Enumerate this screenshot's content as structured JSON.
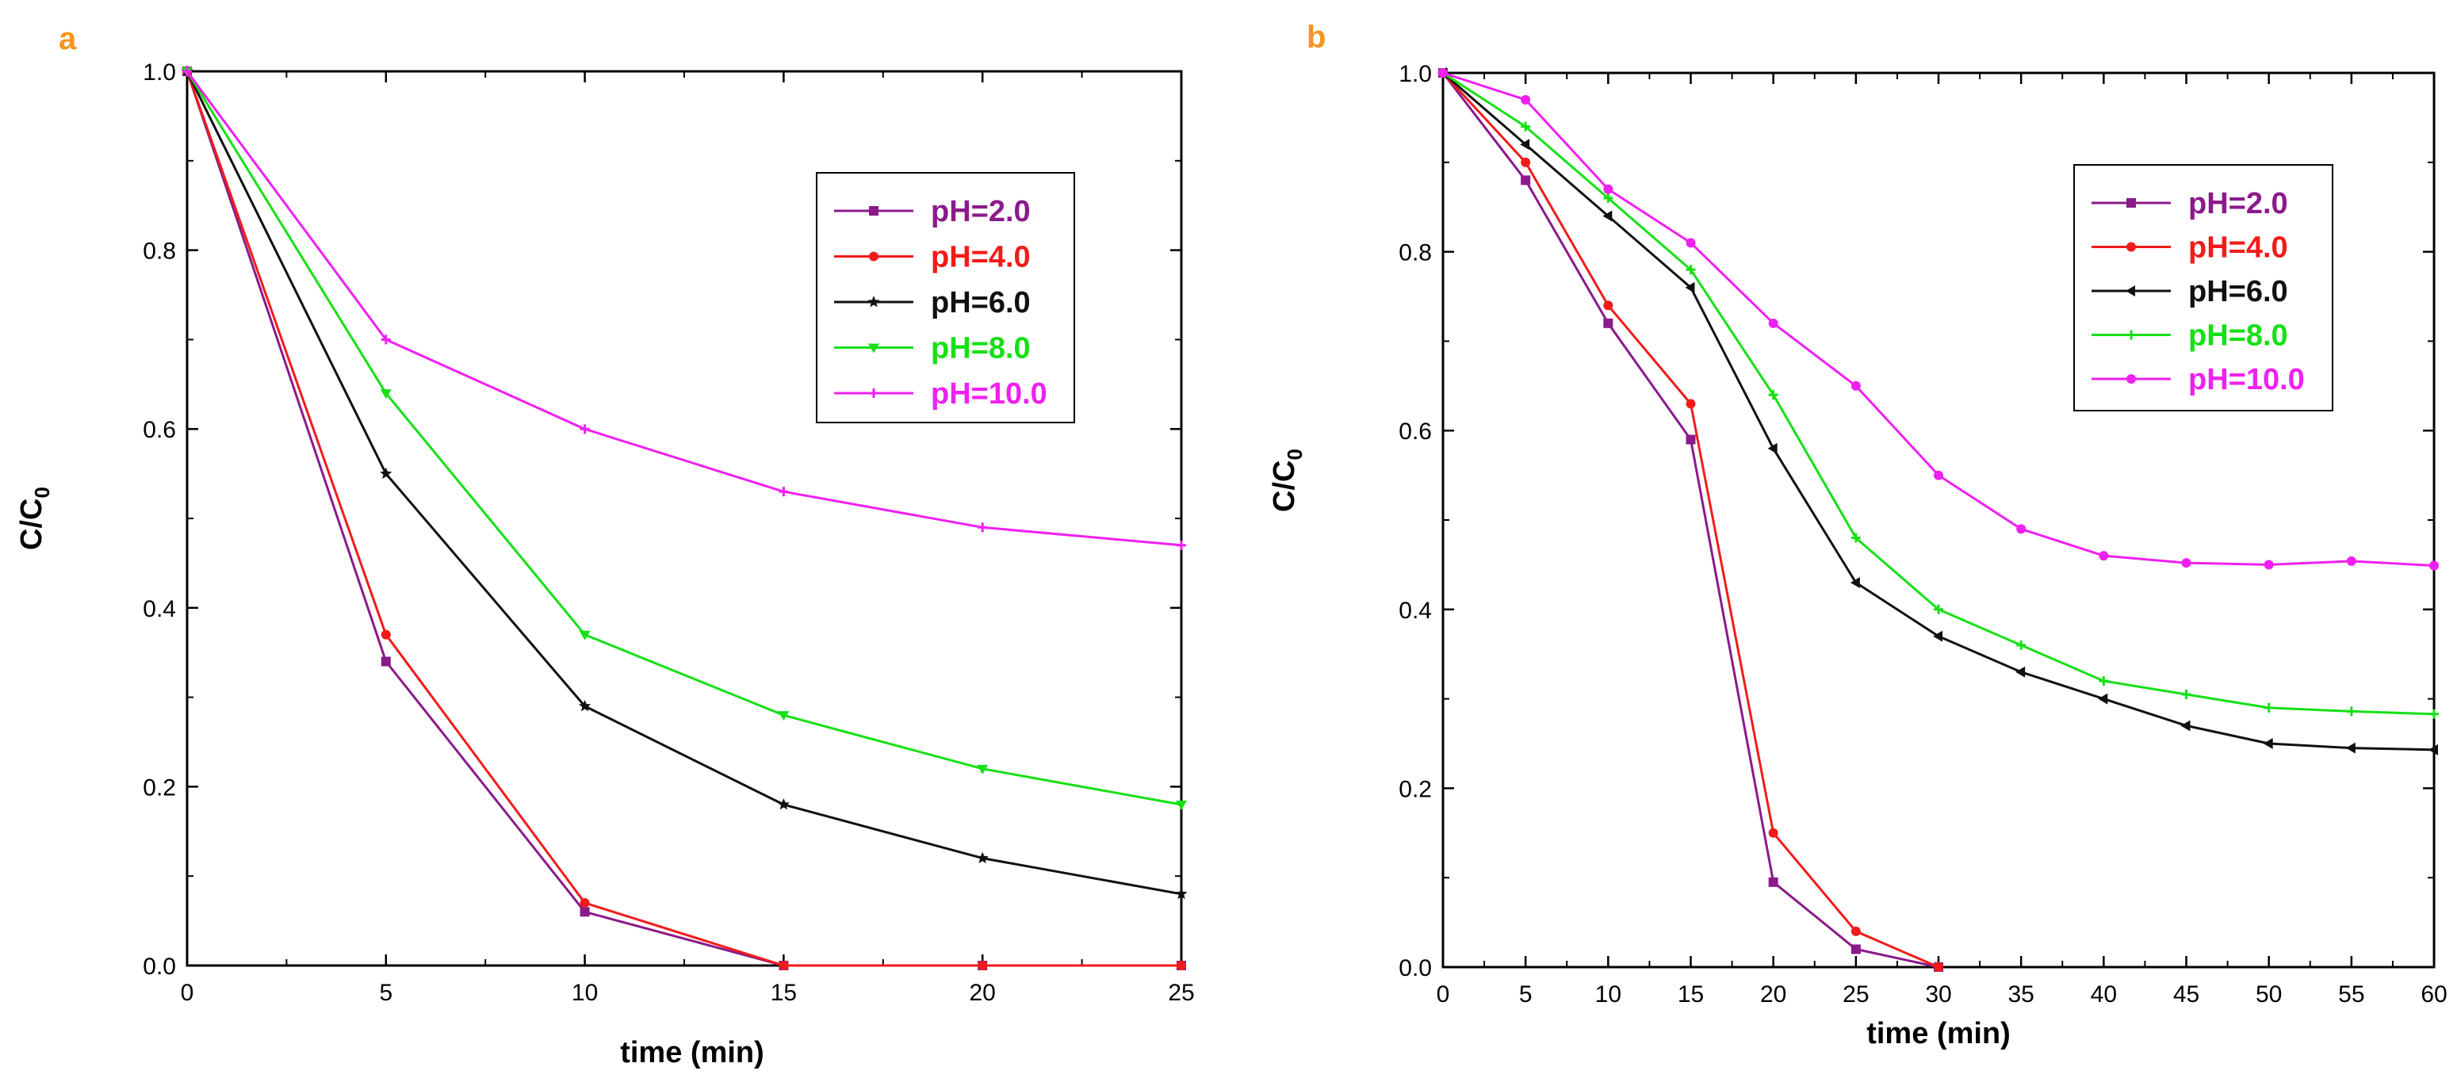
{
  "colors": {
    "pH2": "#8B1A8B",
    "pH4": "#F21B1B",
    "pH6": "#111111",
    "pH8": "#16E016",
    "pH10": "#F020F0",
    "panel_letter": "#F7941D"
  },
  "chart_data": [
    {
      "type": "line",
      "panel_label": "a",
      "xlabel": "time (min)",
      "ylabel": "C/C",
      "ylabel_sub": "0",
      "xlim": [
        0,
        25
      ],
      "ylim": [
        0,
        1.0
      ],
      "xticks": [
        0,
        5,
        10,
        15,
        20,
        25
      ],
      "xtick_labels": [
        "0",
        "5",
        "10",
        "15",
        "20",
        "25"
      ],
      "yticks": [
        0,
        0.2,
        0.4,
        0.6,
        0.8,
        1.0
      ],
      "ytick_labels": [
        "0.0",
        "0.2",
        "0.4",
        "0.6",
        "0.8",
        "1.0"
      ],
      "legend_position": "top-right",
      "x": [
        0,
        5,
        10,
        15,
        20,
        25
      ],
      "series": [
        {
          "name": "pH=2.0",
          "color_key": "pH2",
          "marker": "square",
          "values": [
            1.0,
            0.34,
            0.06,
            0.0,
            0.0,
            0.0
          ]
        },
        {
          "name": "pH=4.0",
          "color_key": "pH4",
          "marker": "circle",
          "values": [
            1.0,
            0.37,
            0.07,
            0.0,
            0.0,
            0.0
          ]
        },
        {
          "name": "pH=6.0",
          "color_key": "pH6",
          "marker": "star",
          "values": [
            1.0,
            0.55,
            0.29,
            0.18,
            0.12,
            0.08
          ]
        },
        {
          "name": "pH=8.0",
          "color_key": "pH8",
          "marker": "triangle-down",
          "values": [
            1.0,
            0.64,
            0.37,
            0.28,
            0.22,
            0.18
          ]
        },
        {
          "name": "pH=10.0",
          "color_key": "pH10",
          "marker": "plus",
          "values": [
            1.0,
            0.7,
            0.6,
            0.53,
            0.49,
            0.47
          ]
        }
      ]
    },
    {
      "type": "line",
      "panel_label": "b",
      "xlabel": "time (min)",
      "ylabel": "C/C",
      "ylabel_sub": "0",
      "xlim": [
        0,
        60
      ],
      "ylim": [
        0,
        1.0
      ],
      "xticks": [
        0,
        5,
        10,
        15,
        20,
        25,
        30,
        35,
        40,
        45,
        50,
        55,
        60
      ],
      "xtick_labels": [
        "0",
        "5",
        "10",
        "15",
        "20",
        "25",
        "30",
        "35",
        "40",
        "45",
        "50",
        "55",
        "60"
      ],
      "yticks": [
        0,
        0.2,
        0.4,
        0.6,
        0.8,
        1.0
      ],
      "ytick_labels": [
        "0.0",
        "0.2",
        "0.4",
        "0.6",
        "0.8",
        "1.0"
      ],
      "legend_position": "top-right",
      "series": [
        {
          "name": "pH=2.0",
          "color_key": "pH2",
          "marker": "square",
          "x": [
            0,
            5,
            10,
            15,
            20,
            25,
            30
          ],
          "values": [
            1.0,
            0.88,
            0.72,
            0.59,
            0.095,
            0.02,
            0.0
          ]
        },
        {
          "name": "pH=4.0",
          "color_key": "pH4",
          "marker": "circle",
          "x": [
            0,
            5,
            10,
            15,
            20,
            25,
            30
          ],
          "values": [
            1.0,
            0.9,
            0.74,
            0.63,
            0.15,
            0.04,
            0.0
          ]
        },
        {
          "name": "pH=6.0",
          "color_key": "pH6",
          "marker": "triangle-left",
          "x": [
            0,
            5,
            10,
            15,
            20,
            25,
            30,
            35,
            40,
            45,
            50,
            55,
            60
          ],
          "values": [
            1.0,
            0.92,
            0.84,
            0.76,
            0.58,
            0.43,
            0.37,
            0.33,
            0.3,
            0.27,
            0.25,
            0.245,
            0.243
          ]
        },
        {
          "name": "pH=8.0",
          "color_key": "pH8",
          "marker": "plus",
          "x": [
            0,
            5,
            10,
            15,
            20,
            25,
            30,
            35,
            40,
            45,
            50,
            55,
            60
          ],
          "values": [
            1.0,
            0.94,
            0.86,
            0.78,
            0.64,
            0.48,
            0.4,
            0.36,
            0.32,
            0.305,
            0.29,
            0.286,
            0.283
          ]
        },
        {
          "name": "pH=10.0",
          "color_key": "pH10",
          "marker": "circle",
          "x": [
            0,
            5,
            10,
            15,
            20,
            25,
            30,
            35,
            40,
            45,
            50,
            55,
            60
          ],
          "values": [
            1.0,
            0.97,
            0.87,
            0.81,
            0.72,
            0.65,
            0.55,
            0.49,
            0.46,
            0.452,
            0.45,
            0.454,
            0.449
          ]
        }
      ]
    }
  ]
}
